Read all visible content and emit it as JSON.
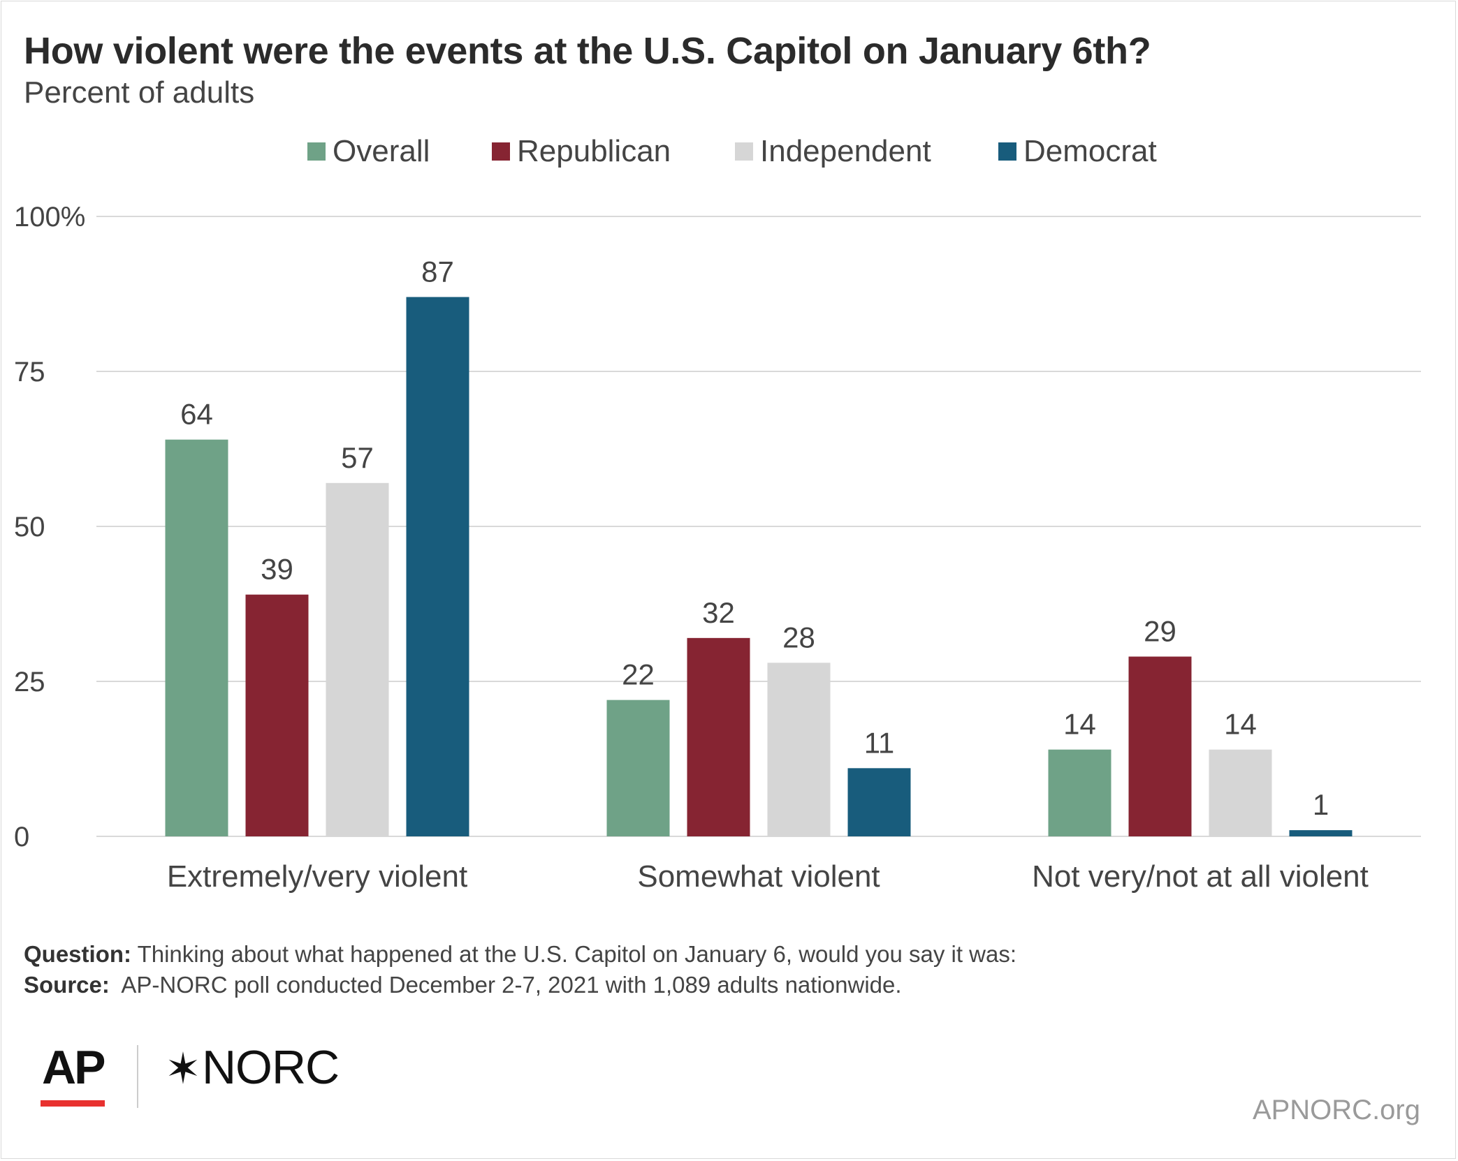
{
  "header": {
    "title": "How violent were the events at the U.S. Capitol on January 6th?",
    "subtitle": "Percent of adults"
  },
  "chart_data": {
    "type": "bar",
    "title": "How violent were the events at the U.S. Capitol on January 6th?",
    "subtitle": "Percent of adults",
    "categories": [
      "Extremely/very violent",
      "Somewhat violent",
      "Not very/not at all violent"
    ],
    "series": [
      {
        "name": "Overall",
        "color": "#6fa287",
        "values": [
          64,
          22,
          14
        ]
      },
      {
        "name": "Republican",
        "color": "#862432",
        "values": [
          39,
          32,
          29
        ]
      },
      {
        "name": "Independent",
        "color": "#d6d6d6",
        "values": [
          57,
          28,
          14
        ]
      },
      {
        "name": "Democrat",
        "color": "#185c7c",
        "values": [
          87,
          11,
          1
        ]
      }
    ],
    "y_ticks": [
      "0",
      "25",
      "50",
      "75",
      "100%"
    ],
    "ylim": [
      0,
      100
    ],
    "grid": true,
    "legend_position": "top-center",
    "data_labels": true
  },
  "footer": {
    "question_label": "Question:",
    "question_text": "Thinking about what happened at the U.S. Capitol on January 6, would you say it was:",
    "source_label": "Source:",
    "source_text": "AP-NORC poll conducted December 2-7, 2021 with 1,089 adults nationwide."
  },
  "branding": {
    "ap_logo": "AP",
    "ap_accent_color": "#e8312f",
    "norc_logo": "NORC",
    "norc_icon": "star-icon",
    "site": "APNORC.org"
  }
}
